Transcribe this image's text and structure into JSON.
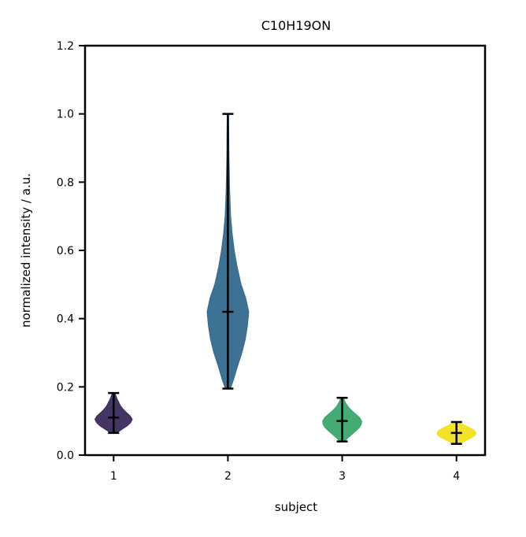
{
  "chart_data": {
    "type": "violin",
    "title": "C10H19ON",
    "xlabel": "subject",
    "ylabel": "normalized intensity / a.u.",
    "ylim": [
      0.0,
      1.2
    ],
    "xlim": [
      0.75,
      4.25
    ],
    "yticks": [
      "0.0",
      "0.2",
      "0.4",
      "0.6",
      "0.8",
      "1.0",
      "1.2"
    ],
    "xticks": [
      "1",
      "2",
      "3",
      "4"
    ],
    "grid": false,
    "legend": "none",
    "series": [
      {
        "x": 1,
        "color": "#3b2a5c",
        "min": 0.065,
        "max": 0.182,
        "median": 0.11,
        "density": [
          [
            0.065,
            0.14
          ],
          [
            0.075,
            0.38
          ],
          [
            0.085,
            0.62
          ],
          [
            0.095,
            0.8
          ],
          [
            0.105,
            0.88
          ],
          [
            0.115,
            0.78
          ],
          [
            0.125,
            0.6
          ],
          [
            0.135,
            0.44
          ],
          [
            0.145,
            0.32
          ],
          [
            0.155,
            0.24
          ],
          [
            0.165,
            0.16
          ],
          [
            0.175,
            0.1
          ],
          [
            0.182,
            0.06
          ]
        ]
      },
      {
        "x": 2,
        "color": "#336a8f",
        "min": 0.195,
        "max": 1.0,
        "median": 0.42,
        "density": [
          [
            0.195,
            0.12
          ],
          [
            0.22,
            0.26
          ],
          [
            0.26,
            0.45
          ],
          [
            0.3,
            0.66
          ],
          [
            0.34,
            0.82
          ],
          [
            0.38,
            0.92
          ],
          [
            0.42,
            0.98
          ],
          [
            0.46,
            0.84
          ],
          [
            0.5,
            0.62
          ],
          [
            0.55,
            0.44
          ],
          [
            0.6,
            0.3
          ],
          [
            0.65,
            0.2
          ],
          [
            0.7,
            0.13
          ],
          [
            0.78,
            0.08
          ],
          [
            0.88,
            0.05
          ],
          [
            0.95,
            0.04
          ],
          [
            1.0,
            0.03
          ]
        ]
      },
      {
        "x": 3,
        "color": "#3aa76d",
        "min": 0.04,
        "max": 0.168,
        "median": 0.1,
        "density": [
          [
            0.04,
            0.1
          ],
          [
            0.05,
            0.26
          ],
          [
            0.06,
            0.44
          ],
          [
            0.07,
            0.62
          ],
          [
            0.08,
            0.8
          ],
          [
            0.09,
            0.9
          ],
          [
            0.1,
            0.92
          ],
          [
            0.11,
            0.82
          ],
          [
            0.12,
            0.64
          ],
          [
            0.13,
            0.46
          ],
          [
            0.14,
            0.3
          ],
          [
            0.15,
            0.19
          ],
          [
            0.16,
            0.11
          ],
          [
            0.168,
            0.07
          ]
        ]
      },
      {
        "x": 4,
        "color": "#f2e01a",
        "min": 0.033,
        "max": 0.097,
        "median": 0.065,
        "density": [
          [
            0.033,
            0.1
          ],
          [
            0.04,
            0.36
          ],
          [
            0.048,
            0.62
          ],
          [
            0.056,
            0.84
          ],
          [
            0.064,
            0.92
          ],
          [
            0.072,
            0.84
          ],
          [
            0.08,
            0.62
          ],
          [
            0.088,
            0.36
          ],
          [
            0.097,
            0.1
          ]
        ]
      }
    ]
  }
}
